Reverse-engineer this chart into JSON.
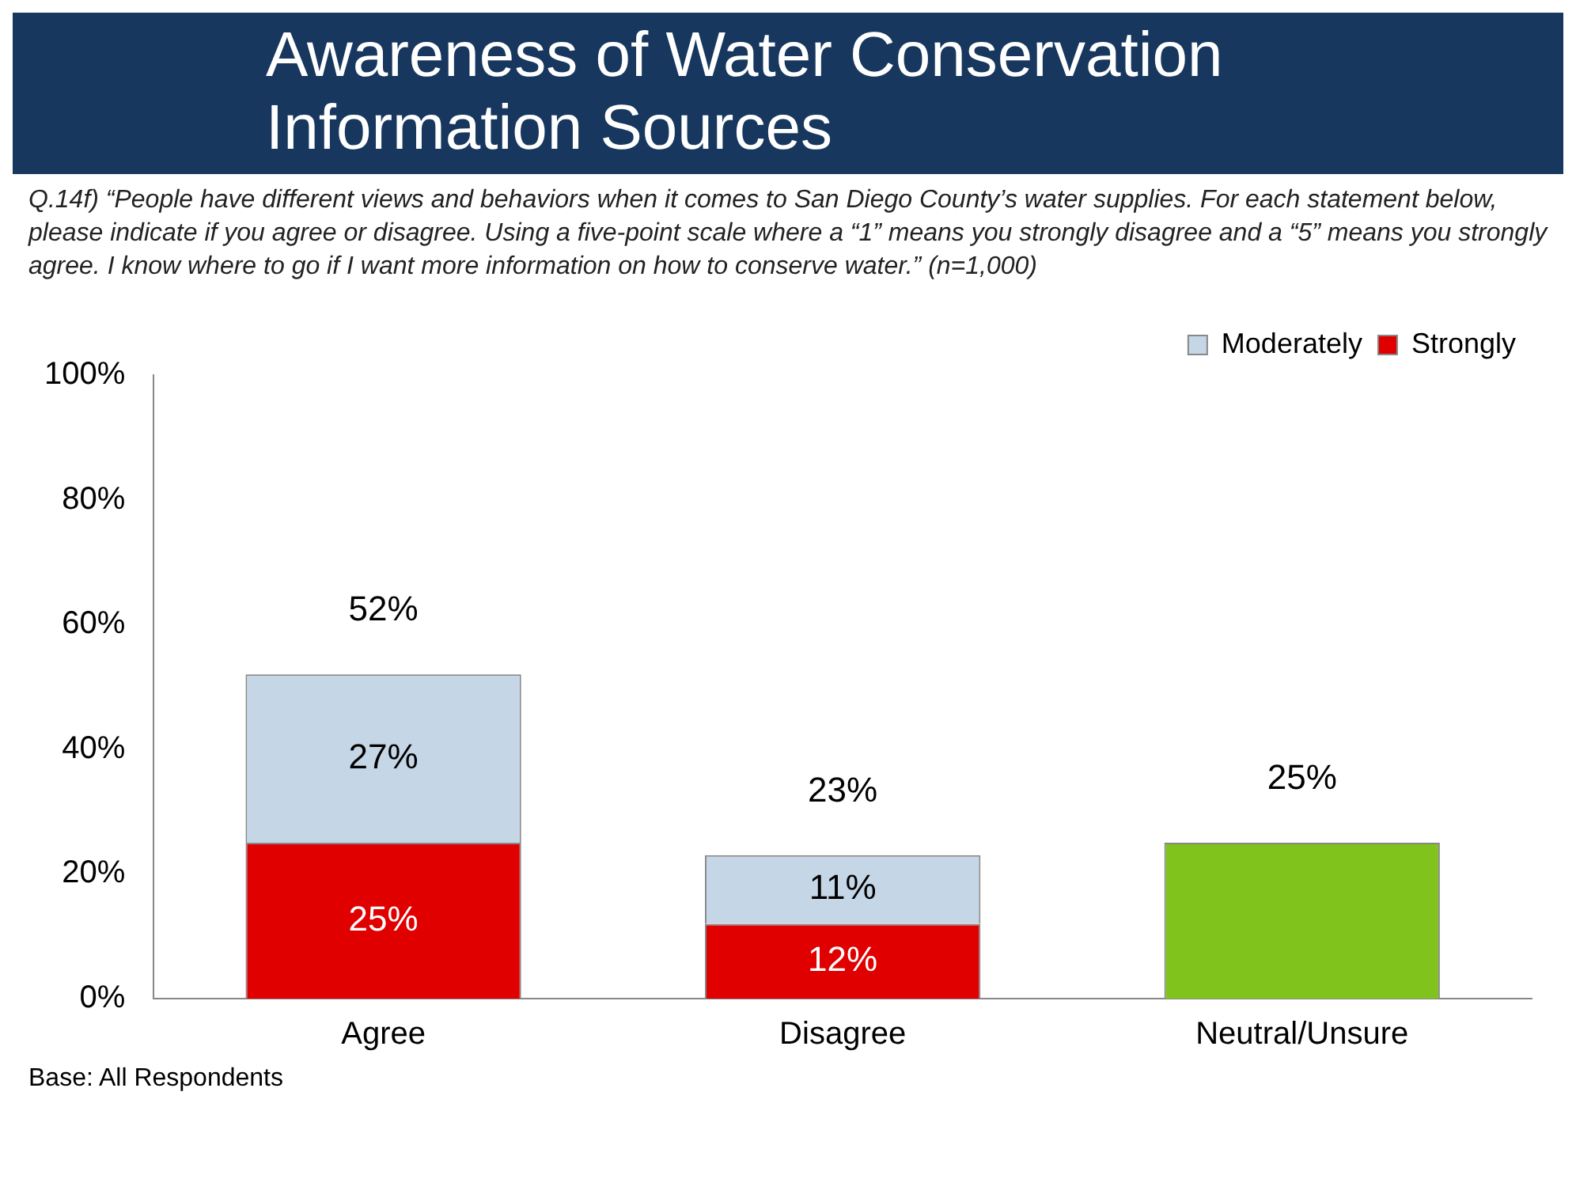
{
  "chart_data": {
    "type": "bar",
    "title": "Awareness of Water Conservation Information Sources",
    "subtitle": "Q.14f) “People have different views and behaviors when it comes to San Diego County’s water supplies.  For each statement below, please indicate if you agree or disagree. Using a five-point scale where a “1” means you strongly disagree and a “5” means you strongly agree. I know where to go if I want more information on how to conserve water.” (n=1,000)",
    "annotations": [
      "Base:  All Respondents"
    ],
    "categories": [
      "Agree",
      "Disagree",
      "Neutral/Unsure"
    ],
    "stacked": true,
    "series": [
      {
        "name": "Strongly",
        "color": "#e00000",
        "values": [
          25,
          12,
          null
        ],
        "value_labels": [
          "25%",
          "12%",
          null
        ]
      },
      {
        "name": "Moderately",
        "color": "#c5d6e6",
        "values": [
          27,
          11,
          null
        ],
        "value_labels": [
          "27%",
          "11%",
          null
        ]
      },
      {
        "color": "#7fc31c",
        "values": [
          null,
          null,
          25
        ]
      }
    ],
    "totals": [
      "52%",
      "23%",
      "25%"
    ],
    "ylim": [
      0,
      100
    ],
    "yticks": [
      {
        "value": 0,
        "label": "0%"
      },
      {
        "value": 20,
        "label": "20%"
      },
      {
        "value": 40,
        "label": "40%"
      },
      {
        "value": 60,
        "label": "60%"
      },
      {
        "value": 80,
        "label": "80%"
      },
      {
        "value": 100,
        "label": "100%"
      }
    ],
    "grid": false,
    "legend": "top right"
  }
}
